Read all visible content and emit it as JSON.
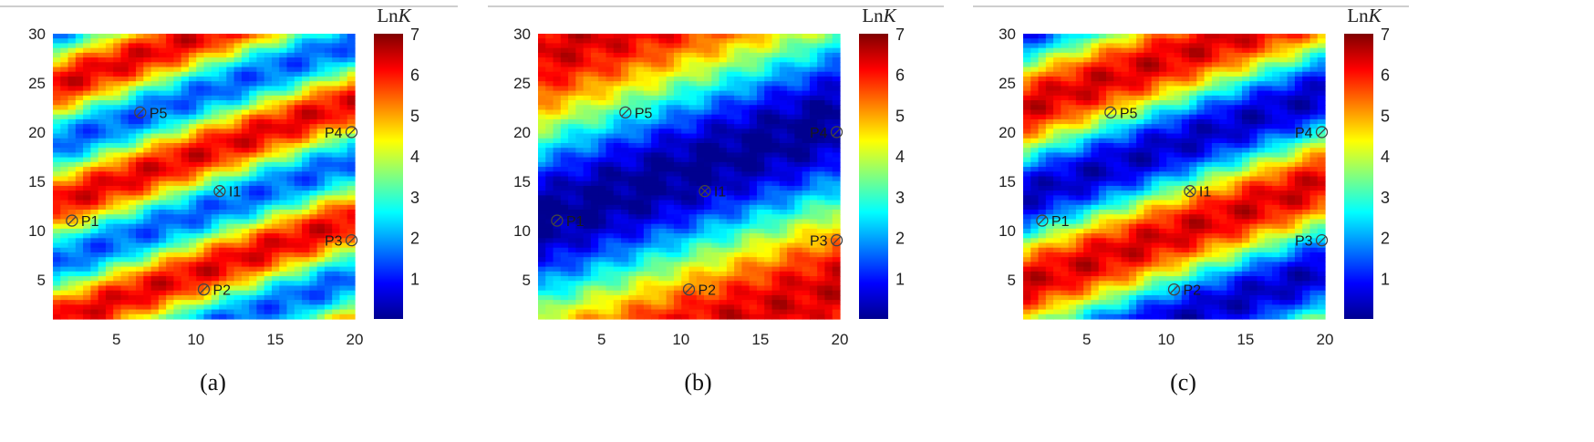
{
  "figure": {
    "colorbar_title_main": "Ln",
    "colorbar_title_italic": "K",
    "colormap": [
      "#00008f",
      "#0000ff",
      "#0080ff",
      "#00ffff",
      "#80ff80",
      "#ffff00",
      "#ff8000",
      "#ff0000",
      "#800000"
    ]
  },
  "chart_data": [
    {
      "type": "heatmap",
      "caption": "(a)",
      "xlim": [
        1,
        20
      ],
      "ylim": [
        1,
        30
      ],
      "xticks": [
        5,
        10,
        15,
        20
      ],
      "yticks": [
        5,
        10,
        15,
        20,
        25,
        30
      ],
      "colorbar": {
        "min": 0,
        "max": 7,
        "ticks": [
          1,
          2,
          3,
          4,
          5,
          6,
          7
        ],
        "label": "LnK"
      },
      "field": {
        "mean": 3.9,
        "amp": 2.4,
        "slope": 0.55,
        "period": 12,
        "phase": 1.5
      },
      "wells": [
        {
          "name": "P1",
          "x": 2.2,
          "y": 11
        },
        {
          "name": "P2",
          "x": 10.5,
          "y": 4
        },
        {
          "name": "P3",
          "x": 19.8,
          "y": 9
        },
        {
          "name": "P4",
          "x": 19.8,
          "y": 20
        },
        {
          "name": "P5",
          "x": 6.5,
          "y": 22
        },
        {
          "name": "I1",
          "x": 11.5,
          "y": 14
        }
      ]
    },
    {
      "type": "heatmap",
      "caption": "(b)",
      "xlim": [
        1,
        20
      ],
      "ylim": [
        1,
        30
      ],
      "xticks": [
        5,
        10,
        15,
        20
      ],
      "yticks": [
        5,
        10,
        15,
        20,
        25,
        30
      ],
      "colorbar": {
        "min": 0,
        "max": 7,
        "ticks": [
          1,
          2,
          3,
          4,
          5,
          6,
          7
        ],
        "label": "LnK"
      },
      "field": {
        "mean": 3.2,
        "amp": 3.2,
        "slope": 0.55,
        "period": 34,
        "phase": 2.8
      },
      "wells": [
        {
          "name": "P1",
          "x": 2.2,
          "y": 11
        },
        {
          "name": "P2",
          "x": 10.5,
          "y": 4
        },
        {
          "name": "P3",
          "x": 19.8,
          "y": 9
        },
        {
          "name": "P4",
          "x": 19.8,
          "y": 20
        },
        {
          "name": "P5",
          "x": 6.5,
          "y": 22
        },
        {
          "name": "I1",
          "x": 11.5,
          "y": 14
        }
      ]
    },
    {
      "type": "heatmap",
      "caption": "(c)",
      "xlim": [
        1,
        20
      ],
      "ylim": [
        1,
        30
      ],
      "xticks": [
        5,
        10,
        15,
        20
      ],
      "yticks": [
        5,
        10,
        15,
        20,
        25,
        30
      ],
      "colorbar": {
        "min": 0,
        "max": 7,
        "ticks": [
          1,
          2,
          3,
          4,
          5,
          6,
          7
        ],
        "label": "LnK"
      },
      "field": {
        "mean": 3.4,
        "amp": 3.0,
        "slope": 0.55,
        "period": 18,
        "phase": 0.2
      },
      "wells": [
        {
          "name": "P1",
          "x": 2.2,
          "y": 11
        },
        {
          "name": "P2",
          "x": 10.5,
          "y": 4
        },
        {
          "name": "P3",
          "x": 19.8,
          "y": 9
        },
        {
          "name": "P4",
          "x": 19.8,
          "y": 20
        },
        {
          "name": "P5",
          "x": 6.5,
          "y": 22
        },
        {
          "name": "I1",
          "x": 11.5,
          "y": 14
        }
      ]
    }
  ]
}
